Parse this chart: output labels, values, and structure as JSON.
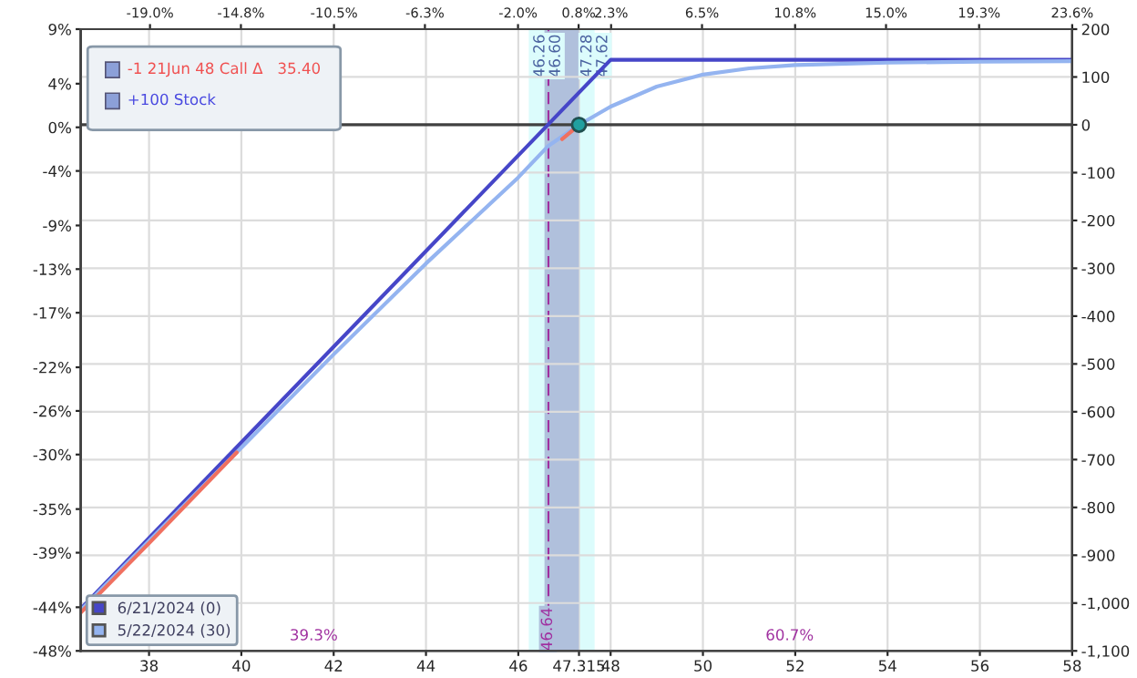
{
  "chart_data": {
    "type": "line",
    "xlim": [
      36.52,
      58
    ],
    "xticks": [
      38,
      40,
      42,
      44,
      46,
      {
        "value": 47.315,
        "label": "47.315"
      },
      48,
      50,
      52,
      54,
      56,
      58
    ],
    "x2lim": [
      -22.2,
      23.6
    ],
    "x2ticks": [
      {
        "value": -19.0,
        "label": "-19.0%"
      },
      {
        "value": -14.8,
        "label": "-14.8%"
      },
      {
        "value": -10.5,
        "label": "-10.5%"
      },
      {
        "value": -6.3,
        "label": "-6.3%"
      },
      {
        "value": -2.0,
        "label": "-2.0%"
      },
      {
        "value": 0.8,
        "label": "0.8%"
      },
      {
        "value": 2.3,
        "label": "2.3%"
      },
      {
        "value": 6.5,
        "label": "6.5%"
      },
      {
        "value": 10.8,
        "label": "10.8%"
      },
      {
        "value": 15.0,
        "label": "15.0%"
      },
      {
        "value": 19.3,
        "label": "19.3%"
      },
      {
        "value": 23.6,
        "label": "23.6%"
      }
    ],
    "ylim": [
      -48,
      9
    ],
    "yticks": [
      {
        "value": 9,
        "label": "9%"
      },
      {
        "value": 4,
        "label": "4%"
      },
      {
        "value": 0,
        "label": "0%"
      },
      {
        "value": -4,
        "label": "-4%"
      },
      {
        "value": -9,
        "label": "-9%"
      },
      {
        "value": -13,
        "label": "-13%"
      },
      {
        "value": -17,
        "label": "-17%"
      },
      {
        "value": -22,
        "label": "-22%"
      },
      {
        "value": -26,
        "label": "-26%"
      },
      {
        "value": -30,
        "label": "-30%"
      },
      {
        "value": -35,
        "label": "-35%"
      },
      {
        "value": -39,
        "label": "-39%"
      },
      {
        "value": -44,
        "label": "-44%"
      },
      {
        "value": -48,
        "label": "-48%"
      }
    ],
    "y2lim": [
      -1100,
      200
    ],
    "y2ticks": [
      200,
      100,
      0,
      -100,
      -200,
      -300,
      -400,
      -500,
      -600,
      -700,
      -800,
      -900,
      {
        "value": -1000,
        "label": "-1,000"
      },
      {
        "value": -1100,
        "label": "-1,100"
      }
    ],
    "grid": true,
    "legend": "bottom left",
    "series": [
      {
        "axis": "y2",
        "name": "6/21/2024 (0)",
        "color": "#4646c8",
        "x": [
          36.52,
          48,
          58
        ],
        "values": [
          -1012,
          136,
          136
        ]
      },
      {
        "axis": "y2",
        "name": "5/22/2024 (30)",
        "color": "#94b4f0",
        "x": [
          36.52,
          38,
          40,
          42,
          44,
          45,
          46,
          46.64,
          47.315,
          48,
          49,
          50,
          51,
          52,
          54,
          56,
          58
        ],
        "values": [
          -1015,
          -870,
          -675,
          -480,
          -290,
          -200,
          -110,
          -45,
          0,
          38,
          80,
          105,
          118,
          125,
          130,
          132,
          133
        ]
      },
      {
        "axis": "y2",
        "color": "#f07060",
        "x": [
          36.52,
          38,
          39.9,
          43,
          46.95,
          47.2
        ],
        "values": [
          -1020,
          -875,
          -685,
          null,
          -30,
          -10
        ]
      },
      {
        "axis": "y2",
        "type": "scatter",
        "color": "#20a0a0",
        "x": [
          47.315
        ],
        "values": [
          0
        ]
      }
    ],
    "bands": [
      {
        "axis": "x",
        "from": 46.26,
        "to": 47.62,
        "color": "#dcfcfc"
      },
      {
        "axis": "x",
        "from": 46.6,
        "to": 47.28,
        "color": "#b0c0dc"
      }
    ],
    "ref_lines": [
      {
        "axis": "y2",
        "value": 0,
        "color": "#404040",
        "line_style": "solid"
      },
      {
        "axis": "x",
        "value": 46.64,
        "label": "46.64",
        "color": "#a030a0",
        "line_style": "dashed"
      },
      {
        "axis": "x",
        "value": 46.26,
        "label": "46.26",
        "color": "#dcfcfc",
        "line_style": "solid"
      },
      {
        "axis": "x",
        "value": 46.6,
        "label": "46.60",
        "color": "#b0c0dc",
        "line_style": "solid"
      },
      {
        "axis": "x",
        "value": 47.28,
        "label": "47.28",
        "color": "#b0c0dc",
        "line_style": "solid"
      },
      {
        "axis": "x",
        "value": 47.62,
        "label": "47.62",
        "color": "#dcfcfc",
        "line_style": "solid"
      }
    ],
    "annotations": [
      "-1 21Jun 48 Call Δ   35.40",
      "+100 Stock",
      "39.3%",
      "60.7%"
    ]
  }
}
